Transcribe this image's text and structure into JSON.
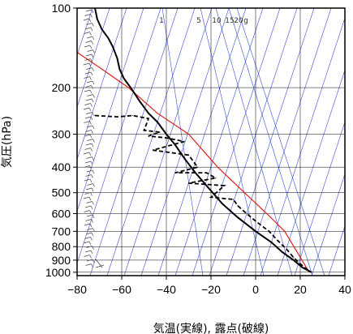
{
  "chart_data": {
    "type": "line",
    "xlabel": "気温(実線), 露点(破線)",
    "ylabel": "気圧(hPa)",
    "xlim": [
      -80,
      40
    ],
    "ylim": [
      1030,
      100
    ],
    "y_scale": "log",
    "x_ticks": [
      -80,
      -60,
      -40,
      -20,
      0,
      20,
      40
    ],
    "y_ticks": [
      100,
      200,
      300,
      400,
      500,
      600,
      700,
      800,
      900,
      1000
    ],
    "grid": true,
    "mixing_ratio_labels": [
      "1",
      "5",
      "10",
      "15",
      "20",
      "g"
    ],
    "mixing_ratio_values": [
      1,
      5,
      10,
      15,
      20
    ],
    "colors": {
      "isotherm": "#3a4fd6",
      "parcel": "#e01e1e",
      "sounding": "#000000",
      "grid": "#000000"
    },
    "series": [
      {
        "x": [
          -72,
          -71,
          -69,
          -66,
          -64,
          -62,
          -61,
          -59,
          -56,
          -52,
          -48,
          -44,
          -40,
          -36,
          -32,
          -27,
          -22,
          -15,
          -8,
          0,
          7,
          12,
          17,
          21,
          25
        ],
        "y": [
          100,
          110,
          120,
          130,
          140,
          155,
          170,
          185,
          200,
          225,
          250,
          270,
          300,
          330,
          370,
          420,
          470,
          550,
          620,
          700,
          770,
          840,
          900,
          960,
          1000
        ]
      },
      {
        "x": [
          -72,
          -62,
          -55,
          -48,
          -50,
          -43,
          -48,
          -40,
          -32,
          -46,
          -30,
          -26,
          -36,
          -22,
          -18,
          -30,
          -14,
          -20,
          -10,
          -8,
          -5,
          0,
          6,
          10,
          14,
          17,
          20,
          24
        ],
        "y": [
          255,
          258,
          255,
          262,
          290,
          295,
          305,
          310,
          320,
          345,
          360,
          400,
          420,
          420,
          440,
          460,
          470,
          520,
          530,
          560,
          590,
          640,
          700,
          760,
          820,
          880,
          930,
          990
        ]
      },
      {
        "x": [
          -80,
          -69,
          -57,
          -44,
          -30,
          -17,
          -5,
          5,
          13,
          19,
          24
        ],
        "y": [
          147,
          170,
          200,
          250,
          300,
          400,
          500,
          600,
          700,
          850,
          1000
        ]
      }
    ]
  }
}
